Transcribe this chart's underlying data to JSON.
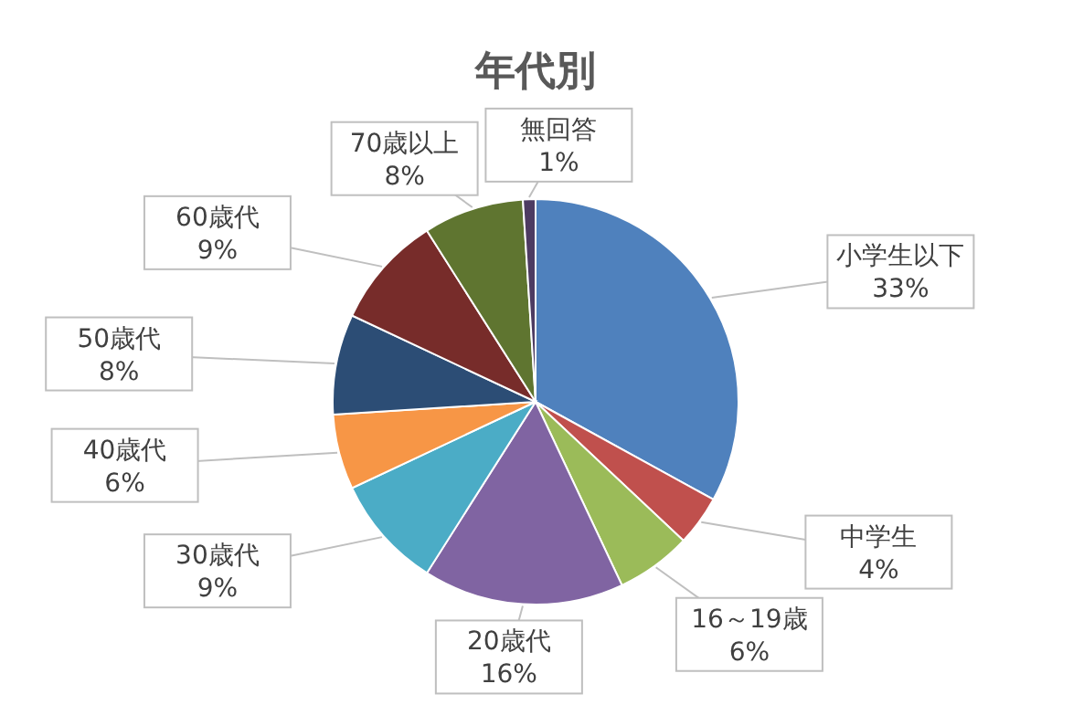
{
  "chart_data": {
    "type": "pie",
    "title": "年代別",
    "categories": [
      "小学生以下",
      "中学生",
      "16～19歳",
      "20歳代",
      "30歳代",
      "40歳代",
      "50歳代",
      "60歳代",
      "70歳以上",
      "無回答"
    ],
    "values": [
      33,
      4,
      6,
      16,
      9,
      6,
      8,
      9,
      8,
      1
    ],
    "colors": [
      "#4f81bd",
      "#c0504d",
      "#9bbb59",
      "#8064a2",
      "#4bacc6",
      "#f79646",
      "#2c4d75",
      "#772c2a",
      "#5f7530",
      "#4d3b62"
    ],
    "value_labels": [
      "33%",
      "4%",
      "6%",
      "16%",
      "9%",
      "6%",
      "8%",
      "9%",
      "8%",
      "1%"
    ]
  }
}
